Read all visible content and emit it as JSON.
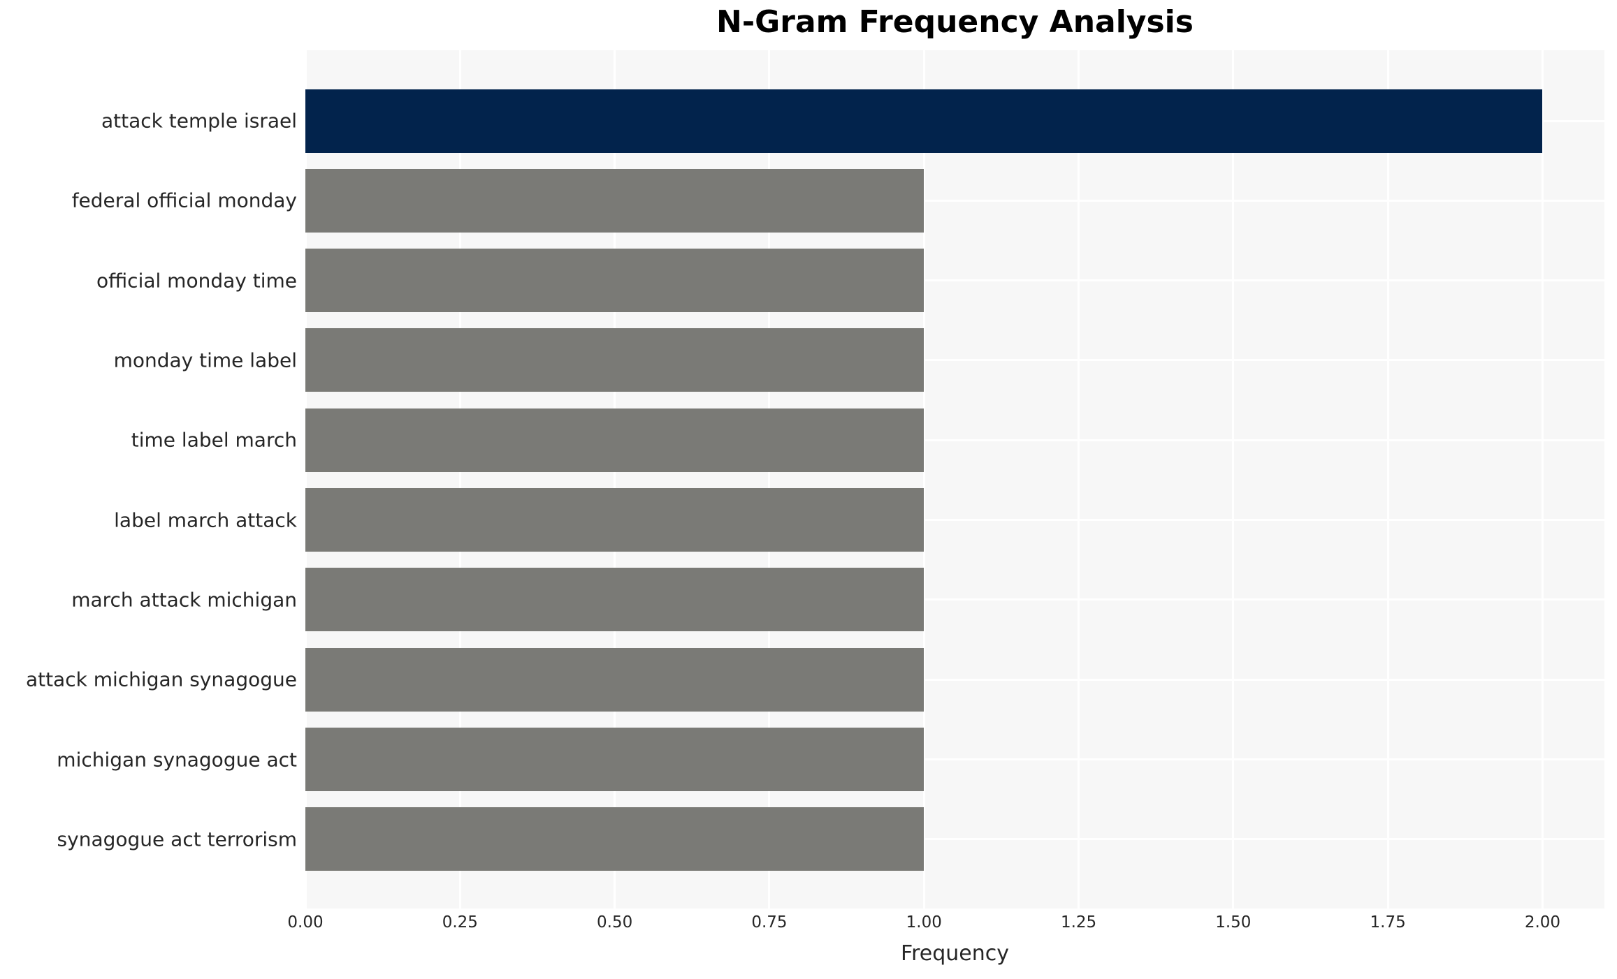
{
  "chart_data": {
    "type": "bar",
    "orientation": "horizontal",
    "title": "N-Gram Frequency Analysis",
    "xlabel": "Frequency",
    "ylabel": "",
    "categories": [
      "attack temple israel",
      "federal official monday",
      "official monday time",
      "monday time label",
      "time label march",
      "label march attack",
      "march attack michigan",
      "attack michigan synagogue",
      "michigan synagogue act",
      "synagogue act terrorism"
    ],
    "values": [
      2.0,
      1.0,
      1.0,
      1.0,
      1.0,
      1.0,
      1.0,
      1.0,
      1.0,
      1.0
    ],
    "highlight_index": 0,
    "xlim": [
      0,
      2.1
    ],
    "xtick_labels": [
      "0.00",
      "0.25",
      "0.50",
      "0.75",
      "1.00",
      "1.25",
      "1.50",
      "1.75",
      "2.00"
    ],
    "xtick_values": [
      0,
      0.25,
      0.5,
      0.75,
      1.0,
      1.25,
      1.5,
      1.75,
      2.0
    ],
    "grid": true,
    "legend": false,
    "colors": {
      "highlight_bar": "#02234c",
      "default_bar": "#7a7a76",
      "plot_background": "#f7f7f7",
      "grid_line": "#ffffff",
      "tick_text": "#262626",
      "title_text": "#000000",
      "figure_background": "#ffffff"
    }
  }
}
